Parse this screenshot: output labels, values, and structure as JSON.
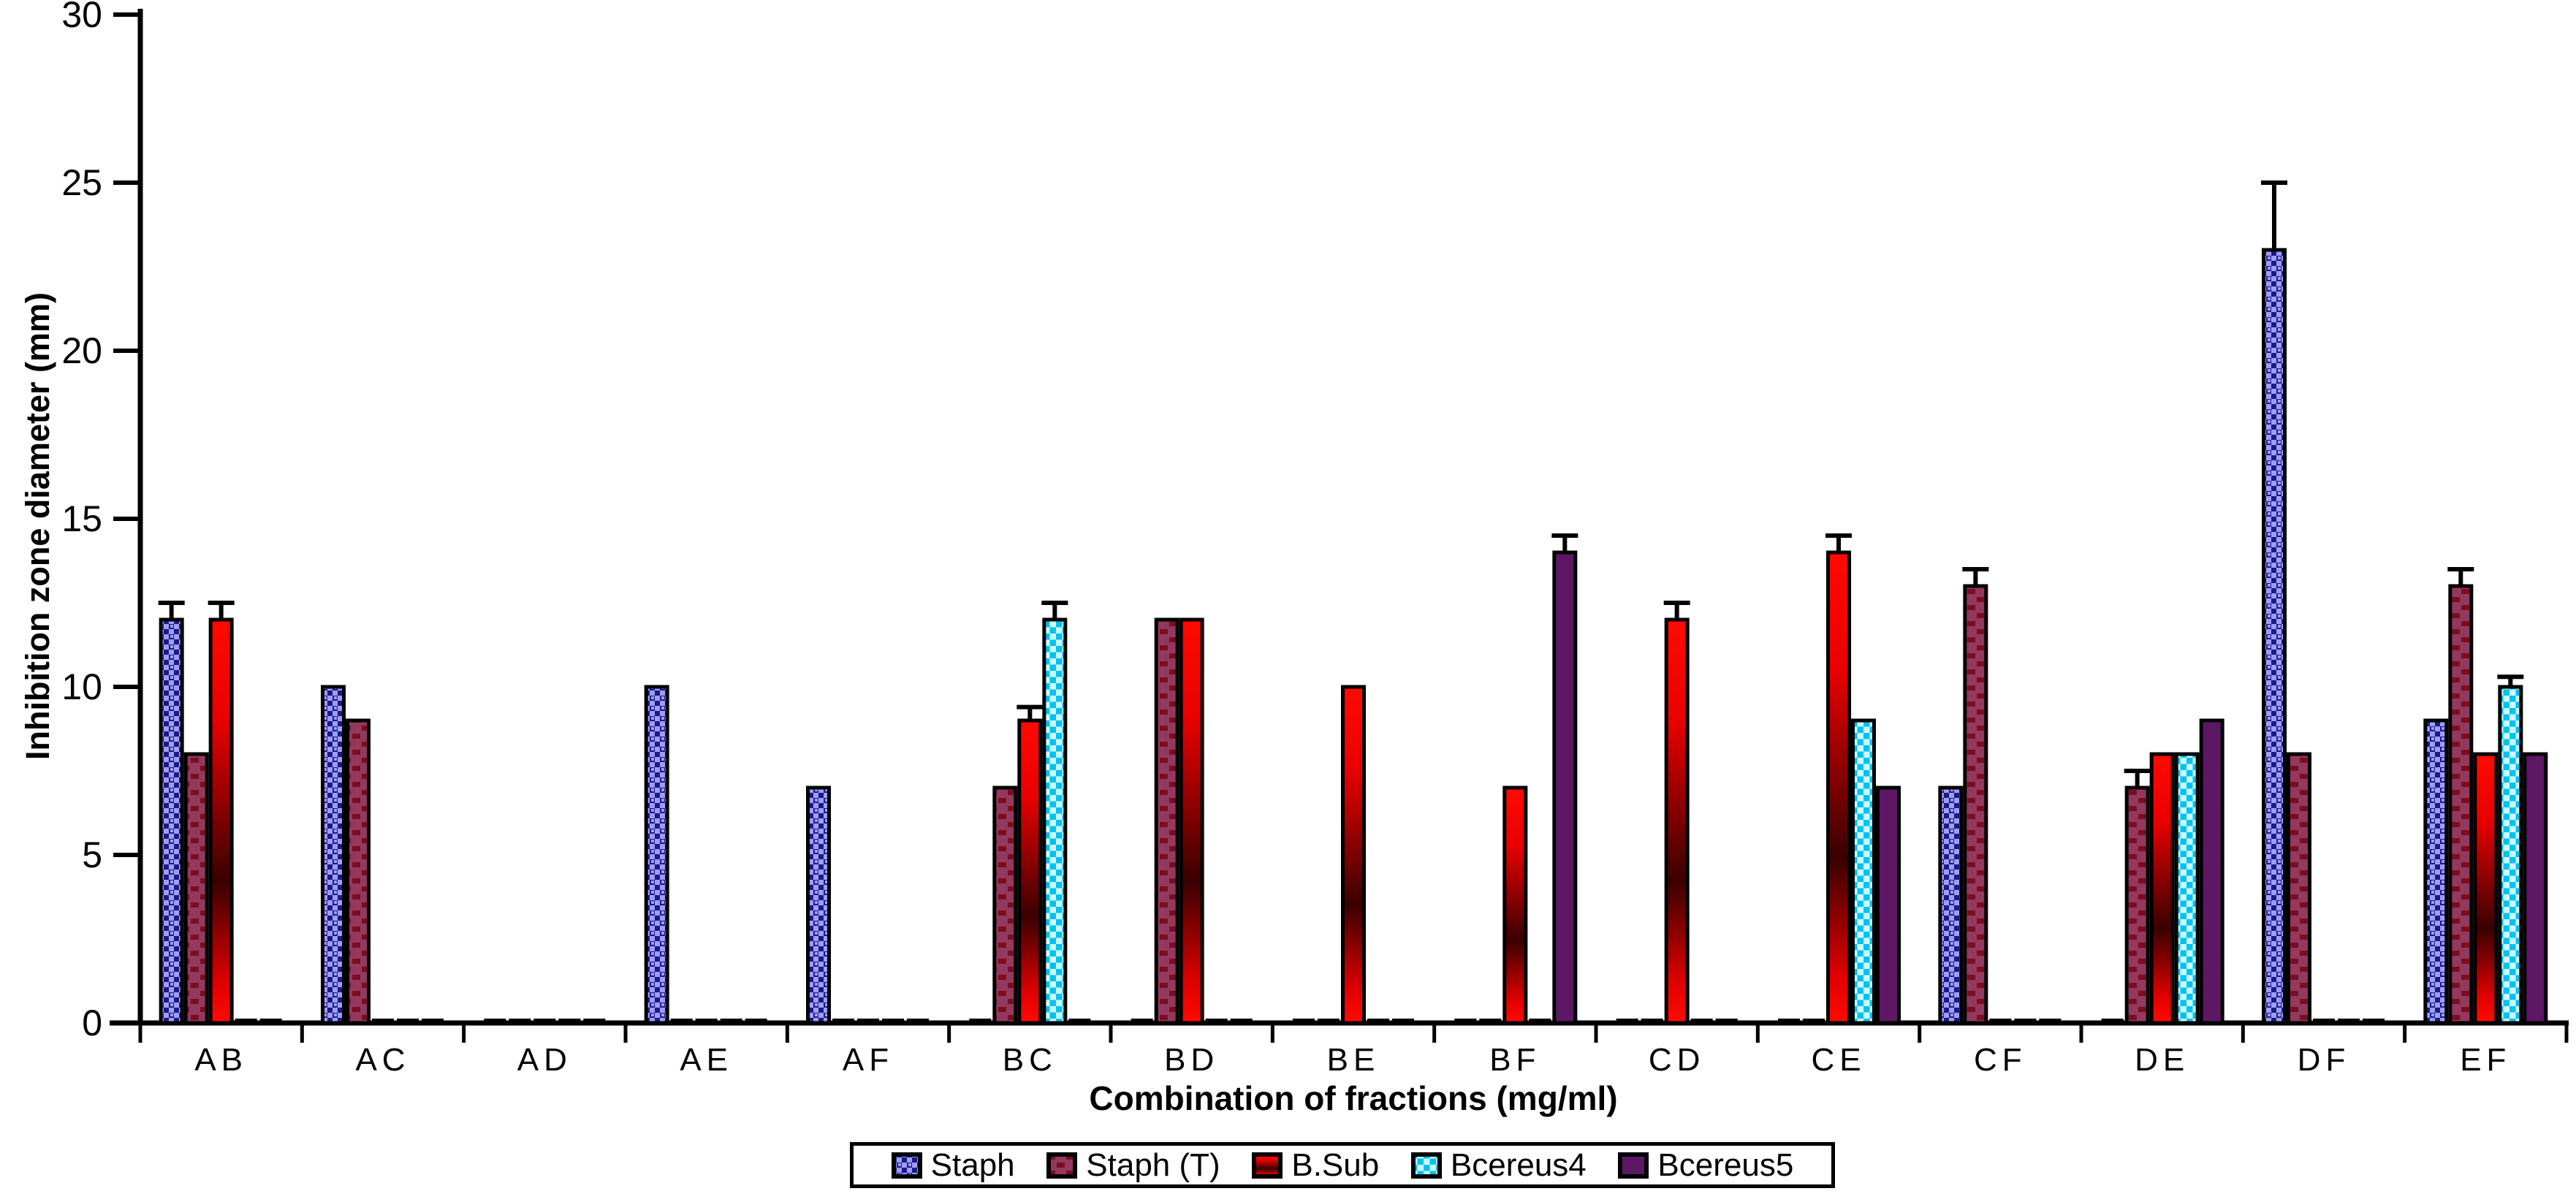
{
  "chart_data": {
    "type": "bar",
    "title": "",
    "xlabel": "Combination of fractions (mg/ml)",
    "ylabel": "Inhibition zone diameter (mm)",
    "ylim": [
      0,
      30
    ],
    "yticks": [
      0,
      5,
      10,
      15,
      20,
      25,
      30
    ],
    "grid": false,
    "legend_position": "bottom",
    "categories": [
      "AB",
      "AC",
      "AD",
      "AE",
      "AF",
      "BC",
      "BD",
      "BE",
      "BF",
      "CD",
      "CE",
      "CF",
      "DE",
      "DF",
      "EF"
    ],
    "series": [
      {
        "name": "Staph",
        "style": "blue-checker",
        "values": [
          12,
          10,
          0,
          10,
          7,
          0,
          0,
          0,
          0,
          0,
          0,
          7,
          0,
          23,
          9
        ],
        "errors": [
          0.5,
          0,
          0,
          0,
          0,
          0,
          0,
          0,
          0,
          0,
          0,
          0,
          0,
          2,
          0
        ]
      },
      {
        "name": "Staph (T)",
        "style": "maroon-dash",
        "values": [
          8,
          9,
          0,
          0,
          0,
          7,
          12,
          0,
          0,
          0,
          0,
          13,
          7,
          8,
          13
        ],
        "errors": [
          0,
          0,
          0,
          0,
          0,
          0,
          0,
          0,
          0,
          0,
          0,
          0.5,
          0.5,
          0,
          0.5
        ]
      },
      {
        "name": "B.Sub",
        "style": "red-gradient",
        "values": [
          12,
          0,
          0,
          0,
          0,
          9,
          12,
          10,
          7,
          12,
          14,
          0,
          8,
          0,
          8
        ],
        "errors": [
          0.5,
          0,
          0,
          0,
          0,
          0.4,
          0,
          0,
          0,
          0.5,
          0.5,
          0,
          0,
          0,
          0
        ]
      },
      {
        "name": "Bcereus4",
        "style": "cyan-checker",
        "values": [
          0,
          0,
          0,
          0,
          0,
          12,
          0,
          0,
          0,
          0,
          9,
          0,
          8,
          0,
          10
        ],
        "errors": [
          0,
          0,
          0,
          0,
          0,
          0.5,
          0,
          0,
          0,
          0,
          0,
          0,
          0,
          0,
          0.3
        ]
      },
      {
        "name": "Bcereus5",
        "style": "purple-solid",
        "values": [
          0,
          0,
          0,
          0,
          0,
          0,
          0,
          0,
          14,
          0,
          7,
          0,
          9,
          0,
          8
        ],
        "errors": [
          0,
          0,
          0,
          0,
          0,
          0,
          0,
          0,
          0.5,
          0,
          0,
          0,
          0,
          0,
          0
        ]
      }
    ]
  },
  "colors": {
    "axis": "#000000",
    "staph_dark": "#1a1a8c",
    "staph_light": "#9e9ef2",
    "stapht_bg": "#93395e",
    "stapht_mark": "#7c0d1f",
    "bsub_bright": "#ff0a00",
    "bsub_dark": "#3a0000",
    "bcereus4_bright": "#00c2ef",
    "bcereus4_pale": "#ccfbff",
    "bcereus5": "#5d1765"
  }
}
